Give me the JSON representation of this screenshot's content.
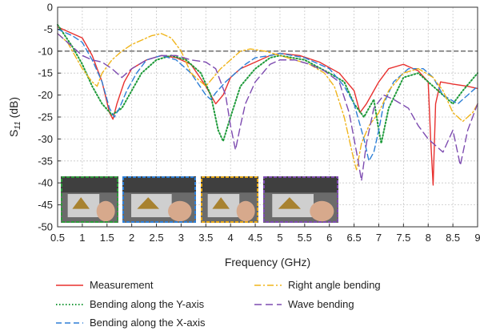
{
  "chart_data": {
    "type": "line",
    "xlabel": "Frequency (GHz)",
    "ylabel": "S11 (dB)",
    "ylabel_main": "S",
    "ylabel_sub": "11",
    "ylabel_unit": " (dB)",
    "xlim": [
      0.5,
      9
    ],
    "ylim": [
      -50,
      0
    ],
    "x_ticks": [
      "0.5",
      "1",
      "1.5",
      "2",
      "2.5",
      "3",
      "3.5",
      "4",
      "4.5",
      "5",
      "5.5",
      "6",
      "6.5",
      "7",
      "7.5",
      "8",
      "8.5",
      "9"
    ],
    "y_ticks": [
      "0",
      "-5",
      "-10",
      "-15",
      "-20",
      "-25",
      "-30",
      "-35",
      "-40",
      "-45",
      "-50"
    ],
    "grid": true,
    "reference_line": -10,
    "legend_placement": "bottom",
    "series": [
      {
        "name": "Measurement",
        "color": "#e8312f",
        "dash": "solid",
        "x": [
          0.5,
          0.8,
          1.0,
          1.2,
          1.4,
          1.55,
          1.62,
          1.7,
          1.85,
          2.0,
          2.3,
          2.6,
          2.9,
          3.2,
          3.5,
          3.7,
          3.85,
          4.0,
          4.2,
          4.5,
          4.8,
          5.0,
          5.4,
          5.8,
          6.2,
          6.5,
          6.62,
          6.75,
          6.9,
          7.0,
          7.2,
          7.5,
          7.8,
          8.0,
          8.05,
          8.1,
          8.15,
          8.25,
          8.5,
          8.8,
          9.0
        ],
        "y": [
          -4.5,
          -6,
          -7,
          -11,
          -17,
          -24,
          -25.5,
          -22,
          -17,
          -14,
          -12,
          -11,
          -11.5,
          -13,
          -18,
          -22,
          -20,
          -16,
          -14,
          -12.5,
          -11,
          -10.5,
          -11,
          -12.5,
          -15,
          -19,
          -24,
          -22,
          -19,
          -17,
          -14,
          -13,
          -14.5,
          -17,
          -30,
          -40.5,
          -22,
          -17,
          -17.5,
          -18,
          -18.5
        ]
      },
      {
        "name": "Bending along the Y-axis",
        "color": "#1e9a3a",
        "dash": "dot",
        "x": [
          0.5,
          0.8,
          1.0,
          1.2,
          1.4,
          1.6,
          1.8,
          2.0,
          2.2,
          2.5,
          2.8,
          3.1,
          3.4,
          3.6,
          3.75,
          3.85,
          4.0,
          4.2,
          4.5,
          4.8,
          5.0,
          5.5,
          6.0,
          6.3,
          6.5,
          6.7,
          6.9,
          7.0,
          7.05,
          7.2,
          7.5,
          7.8,
          8.0,
          8.3,
          8.5,
          8.7,
          9.0
        ],
        "y": [
          -4,
          -9,
          -13,
          -18,
          -22,
          -24.5,
          -23,
          -19,
          -15,
          -12,
          -11,
          -12,
          -15,
          -20,
          -28,
          -30.5,
          -25,
          -18,
          -14,
          -11.5,
          -11,
          -12,
          -15,
          -17,
          -22,
          -25,
          -21,
          -28,
          -31,
          -23,
          -16,
          -15,
          -17,
          -20,
          -22,
          -19,
          -15
        ]
      },
      {
        "name": "Bending along the X-axis",
        "color": "#2e7fd6",
        "dash": "dash",
        "x": [
          0.5,
          0.8,
          1.0,
          1.2,
          1.4,
          1.55,
          1.65,
          1.75,
          1.9,
          2.1,
          2.3,
          2.6,
          2.9,
          3.2,
          3.5,
          3.6,
          3.7,
          3.9,
          4.1,
          4.3,
          4.5,
          4.8,
          5.0,
          5.5,
          6.0,
          6.3,
          6.5,
          6.7,
          6.8,
          6.9,
          7.0,
          7.1,
          7.3,
          7.6,
          7.9,
          8.1,
          8.3,
          8.6,
          8.8,
          9.0
        ],
        "y": [
          -5,
          -6.5,
          -8,
          -12,
          -17,
          -23,
          -25,
          -23,
          -19,
          -15,
          -12,
          -11,
          -12,
          -15,
          -20,
          -21,
          -19.5,
          -17,
          -15,
          -13,
          -11.5,
          -11,
          -10.5,
          -11.5,
          -14,
          -18,
          -22,
          -30,
          -35,
          -33,
          -28,
          -22,
          -17,
          -14,
          -14,
          -16,
          -20,
          -22,
          -20,
          -18
        ]
      },
      {
        "name": "Right angle bending",
        "color": "#f0b51c",
        "dash": "dashdot",
        "x": [
          0.5,
          0.7,
          0.9,
          1.0,
          1.2,
          1.3,
          1.4,
          1.6,
          1.8,
          2.0,
          2.2,
          2.4,
          2.6,
          2.8,
          3.0,
          3.2,
          3.5,
          3.8,
          4.0,
          4.2,
          4.4,
          4.7,
          5.0,
          5.3,
          5.6,
          5.9,
          6.1,
          6.3,
          6.4,
          6.5,
          6.55,
          6.65,
          6.8,
          7.0,
          7.2,
          7.5,
          7.8,
          8.1,
          8.3,
          8.5,
          8.7,
          8.9,
          9.0
        ],
        "y": [
          -6,
          -8,
          -12,
          -14,
          -17,
          -18,
          -15,
          -12,
          -10,
          -8.5,
          -7.5,
          -6.5,
          -6,
          -7,
          -10,
          -15,
          -18,
          -14,
          -12,
          -10,
          -9.5,
          -10,
          -11,
          -12,
          -13,
          -15,
          -18,
          -25,
          -30,
          -35,
          -37,
          -31,
          -27,
          -24,
          -19,
          -15,
          -14,
          -16,
          -19,
          -24,
          -26,
          -24,
          -22
        ]
      },
      {
        "name": "Wave bending",
        "color": "#7d4bb0",
        "dash": "longdash",
        "x": [
          0.5,
          0.8,
          1.0,
          1.2,
          1.4,
          1.6,
          1.8,
          2.0,
          2.3,
          2.6,
          2.9,
          3.2,
          3.5,
          3.7,
          3.9,
          4.0,
          4.1,
          4.2,
          4.3,
          4.5,
          4.8,
          5.0,
          5.3,
          5.6,
          5.9,
          6.2,
          6.4,
          6.55,
          6.65,
          6.75,
          6.9,
          7.1,
          7.3,
          7.6,
          7.8,
          8.0,
          8.3,
          8.5,
          8.65,
          8.8,
          9.0
        ],
        "y": [
          -6,
          -9,
          -11,
          -12,
          -12.5,
          -14,
          -16,
          -14,
          -12,
          -11,
          -11,
          -12,
          -12.5,
          -14,
          -20,
          -27,
          -32.5,
          -27,
          -22,
          -17,
          -13,
          -12,
          -12,
          -13,
          -14.5,
          -17,
          -24,
          -33,
          -39.5,
          -31,
          -23,
          -20,
          -21,
          -23,
          -27,
          -30,
          -33,
          -28,
          -36,
          -28,
          -22
        ]
      }
    ]
  },
  "legend_layout": [
    {
      "col": 0,
      "row": 0
    },
    {
      "col": 0,
      "row": 1
    },
    {
      "col": 0,
      "row": 2
    },
    {
      "col": 1,
      "row": 0
    },
    {
      "col": 1,
      "row": 1
    }
  ],
  "inset_photos": [
    {
      "label": "photo-y-axis-bending",
      "border": "#2e9a3a"
    },
    {
      "label": "photo-x-axis-bending",
      "border": "#2e7fd6"
    },
    {
      "label": "photo-right-angle-bending",
      "border": "#e6a817"
    },
    {
      "label": "photo-wave-bending",
      "border": "#7d4bb0"
    }
  ]
}
